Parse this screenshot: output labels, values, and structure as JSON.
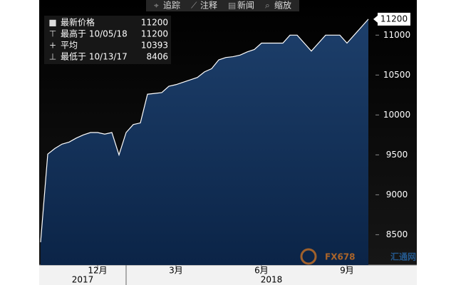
{
  "chart_data": {
    "type": "area",
    "toolbar": [
      "追踪",
      "注释",
      "新闻",
      "缩放"
    ],
    "legend": [
      {
        "label": "最新价格",
        "value": 11200
      },
      {
        "label": "最高于 10/05/18",
        "value": 11200
      },
      {
        "label": "平均",
        "value": 10393
      },
      {
        "label": "最低于 10/13/17",
        "value": 8406
      }
    ],
    "categories": [
      null,
      null,
      null,
      null,
      null,
      null,
      null,
      null,
      "12月",
      null,
      null,
      null,
      null,
      null,
      null,
      null,
      null,
      null,
      null,
      "3月",
      null,
      null,
      null,
      null,
      null,
      null,
      null,
      null,
      null,
      null,
      null,
      "6月",
      null,
      null,
      null,
      null,
      null,
      null,
      null,
      null,
      null,
      null,
      null,
      "9月",
      null,
      null,
      null
    ],
    "years": [
      "2017",
      "2018"
    ],
    "series": [
      {
        "color": "#ffffff",
        "values": [
          8406,
          9510,
          9580,
          9635,
          9660,
          9710,
          9750,
          9780,
          9780,
          9760,
          9780,
          9500,
          9780,
          9880,
          9900,
          10260,
          10270,
          10280,
          10360,
          10380,
          10410,
          10440,
          10470,
          10540,
          10580,
          10690,
          10720,
          10730,
          10750,
          10790,
          10820,
          10900,
          10900,
          10900,
          10900,
          11000,
          11000,
          10900,
          10800,
          10900,
          11000,
          11000,
          11000,
          10900,
          11000,
          11100,
          11200
        ]
      }
    ],
    "ylim": [
      8120,
      11440
    ],
    "yticks": [
      8500,
      9000,
      9500,
      10000,
      10500,
      11000
    ],
    "watermark": [
      "FX678",
      "汇通网"
    ]
  }
}
